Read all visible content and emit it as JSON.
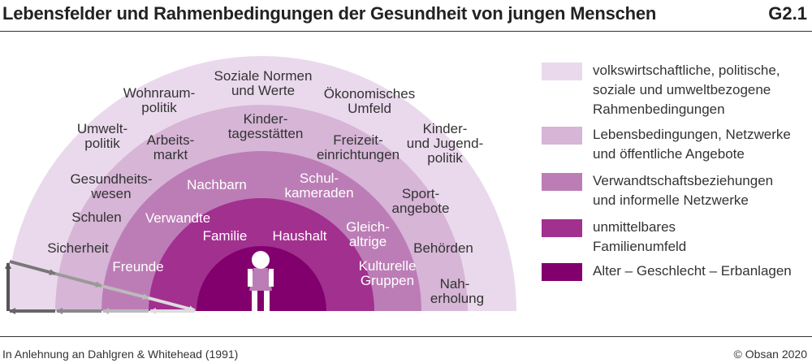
{
  "title": "Lebensfelder und Rahmenbedingungen der Gesundheit von jungen Menschen",
  "code": "G2.1",
  "source": "In Anlehnung an Dahlgren & Whitehead (1991)",
  "copyright": "© Obsan 2020",
  "colors": {
    "ring1": "#ead9ec",
    "ring2": "#d6b5d6",
    "ring3": "#bc7db6",
    "ring4": "#a2308f",
    "ring5": "#82006d"
  },
  "rings": {
    "outer": [
      "Soziale Normen",
      "und Werte",
      "Wohnraum-",
      "politik",
      "Ökonomisches",
      "Umfeld",
      "Umwelt-",
      "politik",
      "Kinder-",
      "und Jugend-",
      "politik",
      "Gesundheits-",
      "wesen",
      "Schulen",
      "Sicherheit",
      "Behörden",
      "Nah-",
      "erholung"
    ],
    "second": [
      "Kinder-",
      "tagesstätten",
      "Arbeits-",
      "markt",
      "Freizeit-",
      "einrichtungen",
      "Sport-",
      "angebote"
    ],
    "third": [
      "Nachbarn",
      "Schul-",
      "kameraden",
      "Verwandte",
      "Gleich-",
      "altrige",
      "Freunde",
      "Kulturelle",
      "Gruppen"
    ],
    "fourth": [
      "Familie",
      "Haushalt"
    ]
  },
  "legend": [
    {
      "label": "volkswirtschaftliche, politische,\nsoziale und umweltbezogene\nRahmenbedingungen",
      "color": "#ead9ec"
    },
    {
      "label": "Lebensbedingungen, Netzwerke\nund öffentliche Angebote",
      "color": "#d6b5d6"
    },
    {
      "label": "Verwandtschaftsbeziehungen\nund informelle Netzwerke",
      "color": "#bc7db6"
    },
    {
      "label": "unmittelbares\nFamilienumfeld",
      "color": "#a2308f"
    },
    {
      "label": "Alter – Geschlecht – Erbanlagen",
      "color": "#82006d"
    }
  ]
}
